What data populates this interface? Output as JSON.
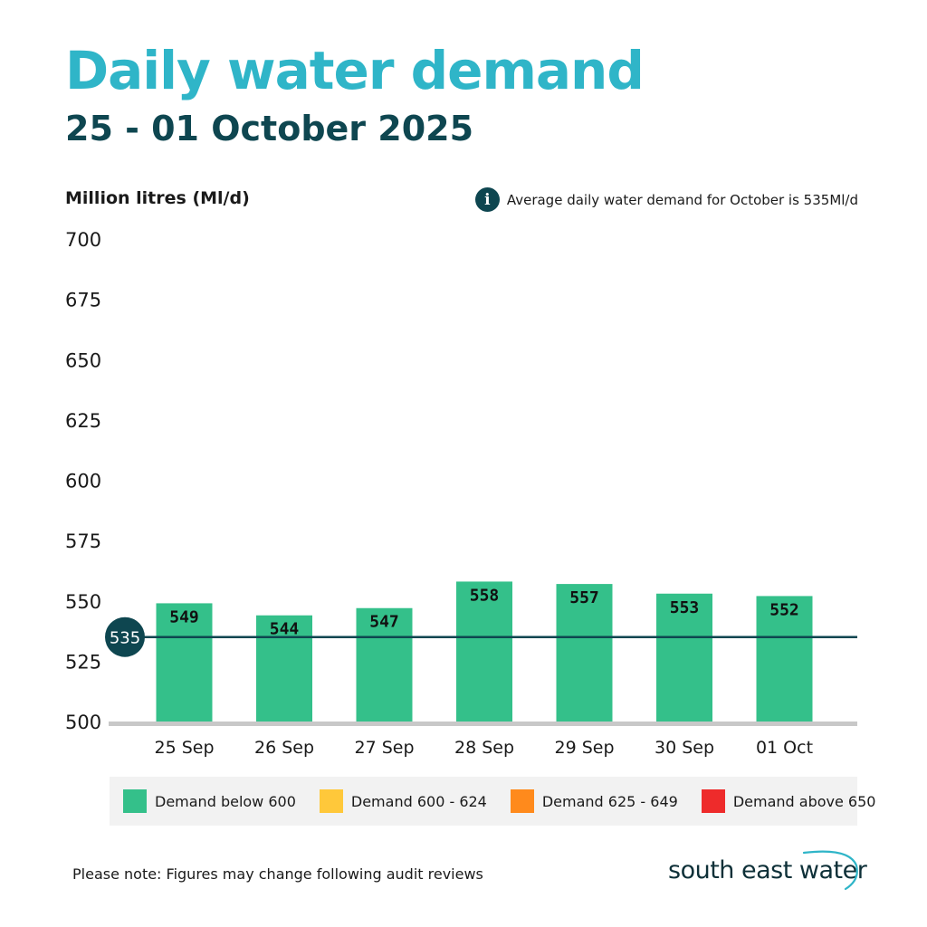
{
  "header": {
    "title": "Daily water demand",
    "subtitle": "25 - 01 October 2025"
  },
  "info": {
    "icon": "info-icon",
    "icon_glyph": "i",
    "text": "Average daily water demand for October is 535Ml/d"
  },
  "legend": [
    {
      "label": "Demand below 600",
      "color": "#34c08a"
    },
    {
      "label": "Demand 600 - 624",
      "color": "#ffc83a"
    },
    {
      "label": "Demand 625 - 649",
      "color": "#ff8a1c"
    },
    {
      "label": "Demand above 650",
      "color": "#ee2b2b"
    }
  ],
  "footer": {
    "note": "Please note: Figures may change following audit reviews",
    "logo_text": "south east water"
  },
  "colors": {
    "bar": "#34c08a",
    "reference_line": "#0e4650",
    "axis": "#c8c8c8",
    "title": "#2fb5c8",
    "subtitle": "#0e4650"
  },
  "chart_data": {
    "type": "bar",
    "title": "Daily water demand",
    "subtitle": "25 - 01 October 2025",
    "ylabel": "Million litres (Ml/d)",
    "xlabel": "",
    "categories": [
      "25 Sep",
      "26 Sep",
      "27 Sep",
      "28 Sep",
      "29 Sep",
      "30 Sep",
      "01 Oct"
    ],
    "values": [
      549,
      544,
      547,
      558,
      557,
      553,
      552
    ],
    "ylim": [
      500,
      700
    ],
    "yticks": [
      500,
      525,
      550,
      575,
      600,
      625,
      650,
      675,
      700
    ],
    "reference_line": {
      "value": 535,
      "label": "535"
    },
    "grid": false
  }
}
